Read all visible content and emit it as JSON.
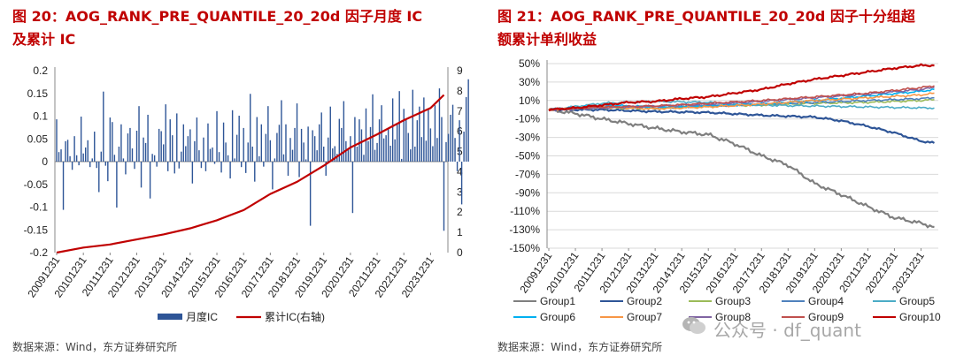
{
  "left_panel": {
    "title": "图 20：AOG_RANK_PRE_QUANTILE_20_20d 因子月度 IC 及累计 IC",
    "title_line1": "图 20：AOG_RANK_PRE_QUANTILE_20_20d 因子月度 IC",
    "title_line2": "及累计 IC",
    "source": "数据来源：Wind，东方证券研究所"
  },
  "right_panel": {
    "title": "图 21：AOG_RANK_PRE_QUANTILE_20_20d 因子十分组超额累计单利收益",
    "title_line1": "图 21：AOG_RANK_PRE_QUANTILE_20_20d 因子十分组超",
    "title_line2": "额累计单利收益",
    "source": "数据来源：Wind，东方证券研究所",
    "watermark": "公众号 · df_quant"
  },
  "chart_data": [
    {
      "type": "bar",
      "title": "AOG_RANK_PRE_QUANTILE_20_20d 因子月度 IC 及累计 IC",
      "x_ticks": [
        "20091231",
        "20101231",
        "20111231",
        "20121231",
        "20131231",
        "20141231",
        "20151231",
        "20161231",
        "20171231",
        "20181231",
        "20191231",
        "20201231",
        "20211231",
        "20221231",
        "20231231"
      ],
      "y_left": {
        "ticks": [
          "-0.2",
          "-0.15",
          "-0.1",
          "-0.05",
          "0",
          "0.05",
          "0.1",
          "0.15",
          "0.2"
        ],
        "min": -0.2,
        "max": 0.2
      },
      "y_right": {
        "ticks": [
          "0",
          "1",
          "2",
          "3",
          "4",
          "5",
          "6",
          "7",
          "8",
          "9"
        ],
        "min": 0,
        "max": 9
      },
      "legend": {
        "position": "bottom",
        "entries": [
          {
            "name": "月度IC",
            "color": "#2e5597",
            "kind": "bar"
          },
          {
            "name": "累计IC(右轴)",
            "color": "#c00000",
            "kind": "line"
          }
        ]
      },
      "series": [
        {
          "name": "月度IC",
          "axis": "left",
          "color": "#2e5597",
          "start": "2009-12",
          "values": [
            0.093,
            0.021,
            0.027,
            -0.106,
            0.045,
            0.048,
            0.012,
            -0.018,
            0.056,
            0.014,
            -0.008,
            0.099,
            0.018,
            0.031,
            0.047,
            -0.012,
            0.007,
            0.066,
            -0.014,
            -0.067,
            0.022,
            0.154,
            -0.009,
            -0.043,
            0.097,
            0.087,
            0.015,
            -0.101,
            0.033,
            0.082,
            0.007,
            -0.028,
            0.062,
            0.074,
            0.029,
            -0.016,
            0.068,
            0.122,
            -0.057,
            0.053,
            0.041,
            0.103,
            -0.081,
            0.017,
            0.014,
            -0.011,
            0.072,
            0.067,
            0.038,
            0.126,
            -0.021,
            0.093,
            0.058,
            -0.026,
            0.106,
            -0.015,
            0.022,
            0.082,
            0.034,
            0.056,
            0.071,
            -0.048,
            0.045,
            0.097,
            0.025,
            -0.014,
            0.053,
            -0.021,
            0.084,
            0.028,
            0.031,
            -0.005,
            0.111,
            0.021,
            -0.024,
            0.086,
            0.042,
            0.014,
            -0.037,
            0.113,
            0.007,
            0.059,
            0.101,
            -0.012,
            0.074,
            -0.025,
            0.042,
            0.149,
            0.033,
            -0.044,
            0.098,
            0.012,
            0.082,
            -0.011,
            0.061,
            0.122,
            0.047,
            -0.061,
            0.007,
            0.063,
            0.081,
            0.135,
            0.016,
            0.082,
            -0.031,
            0.052,
            0.026,
            0.074,
            0.128,
            -0.034,
            0.072,
            0.042,
            0.005,
            0.077,
            -0.141,
            0.069,
            0.056,
            0.025,
            0.082,
            0.108,
            0.033,
            -0.031,
            0.053,
            0.121,
            0.029,
            0.034,
            0.017,
            0.094,
            0.074,
            0.133,
            0.045,
            0.027,
            0.056,
            -0.113,
            0.098,
            0.033,
            0.093,
            0.071,
            0.015,
            0.117,
            0.045,
            0.076,
            0.148,
            0.026,
            0.041,
            0.093,
            0.124,
            0.051,
            0.058,
            0.071,
            0.035,
            0.139,
            0.049,
            0.085,
            0.155,
            0.006,
            0.116,
            0.092,
            0.063,
            0.027,
            0.158,
            0.033,
            0.091,
            0.121,
            0.054,
            0.141,
            0.046,
            0.115,
            0.073,
            0.034,
            0.124,
            0.052,
            0.161,
            0.098,
            -0.152,
            0.043,
            0.061,
            0.103,
            0.125,
            0.052,
            -0.021,
            0.091,
            -0.094,
            0.066,
            0.142,
            0.181
          ]
        },
        {
          "name": "累计IC(右轴)",
          "axis": "right",
          "color": "#c00000",
          "points": [
            [
              "2009-12",
              0.0
            ],
            [
              "2010-12",
              0.25
            ],
            [
              "2011-12",
              0.4
            ],
            [
              "2012-12",
              0.65
            ],
            [
              "2013-12",
              0.9
            ],
            [
              "2014-12",
              1.2
            ],
            [
              "2015-12",
              1.6
            ],
            [
              "2016-12",
              2.1
            ],
            [
              "2017-12",
              2.9
            ],
            [
              "2018-12",
              3.5
            ],
            [
              "2019-12",
              4.3
            ],
            [
              "2020-12",
              5.2
            ],
            [
              "2021-12",
              5.85
            ],
            [
              "2022-12",
              6.55
            ],
            [
              "2023-12",
              7.15
            ],
            [
              "2024-06",
              7.8
            ]
          ]
        }
      ]
    },
    {
      "type": "line",
      "title": "AOG_RANK_PRE_QUANTILE_20_20d 因子十分组超额累计单利收益",
      "x_ticks": [
        "20091231",
        "20101231",
        "20111231",
        "20121231",
        "20131231",
        "20141231",
        "20151231",
        "20161231",
        "20171231",
        "20181231",
        "20191231",
        "20201231",
        "20211231",
        "20221231",
        "20231231"
      ],
      "y": {
        "ticks": [
          "-150%",
          "-130%",
          "-110%",
          "-90%",
          "-70%",
          "-50%",
          "-30%",
          "-10%",
          "10%",
          "30%",
          "50%"
        ],
        "min": -150,
        "max": 50,
        "unit": "%"
      },
      "legend": {
        "position": "bottom"
      },
      "series": [
        {
          "name": "Group1",
          "color": "#7f7f7f",
          "points": [
            [
              "2009-12",
              0
            ],
            [
              "2010-12",
              -4
            ],
            [
              "2011-12",
              -10
            ],
            [
              "2012-12",
              -15
            ],
            [
              "2013-12",
              -20
            ],
            [
              "2014-12",
              -24
            ],
            [
              "2015-12",
              -27
            ],
            [
              "2016-12",
              -37
            ],
            [
              "2017-12",
              -50
            ],
            [
              "2018-12",
              -60
            ],
            [
              "2019-12",
              -80
            ],
            [
              "2020-12",
              -92
            ],
            [
              "2021-12",
              -105
            ],
            [
              "2022-12",
              -117
            ],
            [
              "2023-12",
              -123
            ],
            [
              "2024-06",
              -127
            ]
          ]
        },
        {
          "name": "Group2",
          "color": "#2e5597",
          "points": [
            [
              "2009-12",
              0
            ],
            [
              "2011-12",
              0
            ],
            [
              "2013-12",
              -2
            ],
            [
              "2015-12",
              -3
            ],
            [
              "2017-12",
              -6
            ],
            [
              "2019-12",
              -8
            ],
            [
              "2020-12",
              -12
            ],
            [
              "2021-12",
              -18
            ],
            [
              "2022-12",
              -25
            ],
            [
              "2023-12",
              -34
            ],
            [
              "2024-06",
              -36
            ]
          ]
        },
        {
          "name": "Group3",
          "color": "#9bbb59",
          "points": [
            [
              "2009-12",
              0
            ],
            [
              "2011-12",
              2
            ],
            [
              "2013-12",
              1
            ],
            [
              "2015-12",
              4
            ],
            [
              "2017-12",
              5
            ],
            [
              "2019-12",
              7
            ],
            [
              "2021-12",
              8
            ],
            [
              "2023-12",
              10
            ],
            [
              "2024-06",
              11
            ]
          ]
        },
        {
          "name": "Group4",
          "color": "#4f81bd",
          "points": [
            [
              "2009-12",
              0
            ],
            [
              "2011-12",
              4
            ],
            [
              "2013-12",
              2
            ],
            [
              "2015-12",
              4
            ],
            [
              "2017-12",
              6
            ],
            [
              "2019-12",
              8
            ],
            [
              "2021-12",
              10
            ],
            [
              "2023-12",
              12
            ],
            [
              "2024-06",
              13
            ]
          ]
        },
        {
          "name": "Group5",
          "color": "#4bacc6",
          "points": [
            [
              "2009-12",
              0
            ],
            [
              "2011-12",
              7
            ],
            [
              "2013-12",
              9
            ],
            [
              "2015-12",
              8
            ],
            [
              "2017-12",
              5
            ],
            [
              "2019-12",
              4
            ],
            [
              "2021-12",
              3
            ],
            [
              "2023-12",
              2
            ],
            [
              "2024-06",
              2
            ]
          ]
        },
        {
          "name": "Group6",
          "color": "#00b0f0",
          "points": [
            [
              "2009-12",
              0
            ],
            [
              "2011-12",
              5
            ],
            [
              "2013-12",
              3
            ],
            [
              "2015-12",
              4
            ],
            [
              "2017-12",
              6
            ],
            [
              "2019-12",
              10
            ],
            [
              "2021-12",
              15
            ],
            [
              "2023-12",
              20
            ],
            [
              "2024-06",
              22
            ]
          ]
        },
        {
          "name": "Group7",
          "color": "#f79646",
          "points": [
            [
              "2009-12",
              0
            ],
            [
              "2011-12",
              3
            ],
            [
              "2013-12",
              1
            ],
            [
              "2015-12",
              3
            ],
            [
              "2017-12",
              6
            ],
            [
              "2019-12",
              10
            ],
            [
              "2021-12",
              13
            ],
            [
              "2023-12",
              16
            ],
            [
              "2024-06",
              18
            ]
          ]
        },
        {
          "name": "Group8",
          "color": "#8064a2",
          "points": [
            [
              "2009-12",
              0
            ],
            [
              "2011-12",
              2
            ],
            [
              "2013-12",
              4
            ],
            [
              "2015-12",
              6
            ],
            [
              "2017-12",
              9
            ],
            [
              "2019-12",
              13
            ],
            [
              "2021-12",
              17
            ],
            [
              "2023-12",
              22
            ],
            [
              "2024-06",
              24
            ]
          ]
        },
        {
          "name": "Group9",
          "color": "#c0504d",
          "points": [
            [
              "2009-12",
              0
            ],
            [
              "2011-12",
              3
            ],
            [
              "2013-12",
              4
            ],
            [
              "2015-12",
              7
            ],
            [
              "2017-12",
              10
            ],
            [
              "2019-12",
              14
            ],
            [
              "2021-12",
              18
            ],
            [
              "2023-12",
              24
            ],
            [
              "2024-06",
              26
            ]
          ]
        },
        {
          "name": "Group10",
          "color": "#c00000",
          "points": [
            [
              "2009-12",
              0
            ],
            [
              "2010-12",
              2
            ],
            [
              "2011-12",
              5
            ],
            [
              "2012-12",
              8
            ],
            [
              "2013-12",
              9
            ],
            [
              "2014-12",
              12
            ],
            [
              "2015-12",
              14
            ],
            [
              "2016-12",
              18
            ],
            [
              "2017-12",
              22
            ],
            [
              "2018-12",
              28
            ],
            [
              "2019-12",
              33
            ],
            [
              "2020-12",
              37
            ],
            [
              "2021-12",
              41
            ],
            [
              "2022-12",
              45
            ],
            [
              "2023-12",
              48
            ],
            [
              "2024-06",
              48
            ]
          ]
        }
      ]
    }
  ]
}
